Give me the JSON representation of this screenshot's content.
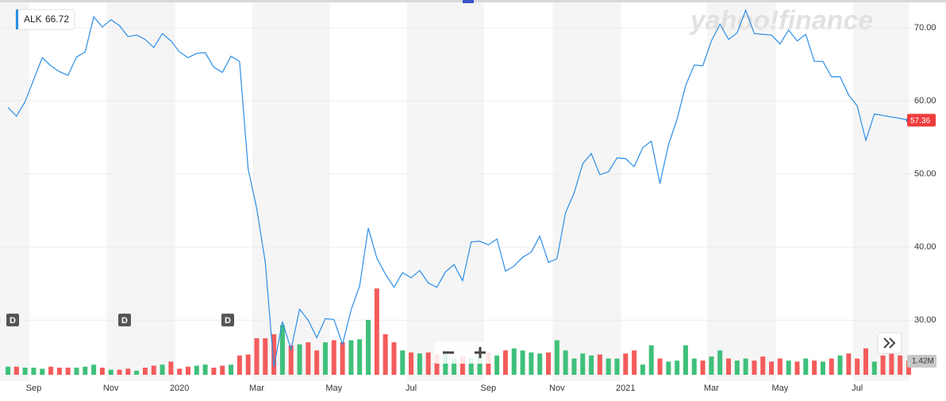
{
  "chart_data": {
    "type": "line",
    "watermark": "yahoo!finance",
    "tooltip_value": 66.72,
    "last_price": 57.36,
    "categories": [
      null,
      null,
      null,
      "Sep",
      null,
      null,
      null,
      null,
      null,
      null,
      null,
      null,
      "Nov",
      null,
      null,
      null,
      null,
      null,
      null,
      null,
      "2020",
      null,
      null,
      null,
      null,
      null,
      null,
      null,
      null,
      "Mar",
      null,
      null,
      null,
      null,
      null,
      null,
      null,
      null,
      "May",
      null,
      null,
      null,
      null,
      null,
      null,
      null,
      null,
      "Jul",
      null,
      null,
      null,
      null,
      null,
      null,
      null,
      null,
      "Sep",
      null,
      null,
      null,
      null,
      null,
      null,
      null,
      "Nov",
      null,
      null,
      null,
      null,
      null,
      null,
      null,
      "2021",
      null,
      null,
      null,
      null,
      null,
      null,
      null,
      null,
      null,
      "Mar",
      null,
      null,
      null,
      null,
      null,
      null,
      null,
      "May",
      null,
      null,
      null,
      null,
      null,
      null,
      null,
      null,
      "Jul",
      null,
      null,
      null,
      null,
      null,
      null
    ],
    "series": [
      {
        "name": "ALK",
        "color": "#2b8ee6",
        "values": [
          59.1,
          57.9,
          59.9,
          62.9,
          65.9,
          64.8,
          64.0,
          63.5,
          66.0,
          66.7,
          71.5,
          70.1,
          71.1,
          70.3,
          68.8,
          69.0,
          68.4,
          67.3,
          69.2,
          68.2,
          66.7,
          65.9,
          66.5,
          66.6,
          64.6,
          63.9,
          66.1,
          65.4,
          50.7,
          45.3,
          37.9,
          23.6,
          29.8,
          26.0,
          31.5,
          30.0,
          27.6,
          30.2,
          30.1,
          26.7,
          31.4,
          34.7,
          42.6,
          38.5,
          36.3,
          34.5,
          36.5,
          35.8,
          36.8,
          35.1,
          34.5,
          36.6,
          37.6,
          35.4,
          40.7,
          40.8,
          40.3,
          41.1,
          36.7,
          37.4,
          38.6,
          39.3,
          41.5,
          37.9,
          38.4,
          44.7,
          47.4,
          51.4,
          52.8,
          49.9,
          50.3,
          52.2,
          52.1,
          51.0,
          53.6,
          54.5,
          48.7,
          54.0,
          57.5,
          62.1,
          64.9,
          64.8,
          68.2,
          70.5,
          68.4,
          69.3,
          72.4,
          69.2,
          69.1,
          69.0,
          67.8,
          69.7,
          68.2,
          69.1,
          65.4,
          65.4,
          63.3,
          63.3,
          60.8,
          59.3,
          54.6,
          58.2,
          58.0,
          57.8,
          57.6,
          57.36
        ]
      }
    ],
    "volume": {
      "up_color": "#3fc07a",
      "down_color": "#f45b5b",
      "lim": [
        0,
        8.6
      ],
      "badge": {
        "value": 1.42,
        "label": "1.42M"
      },
      "values": [
        0.8,
        0.8,
        0.7,
        0.7,
        0.6,
        0.8,
        0.7,
        0.7,
        0.7,
        0.8,
        1.0,
        0.7,
        0.5,
        0.5,
        0.6,
        0.4,
        0.7,
        0.9,
        1.0,
        1.3,
        0.6,
        0.8,
        0.9,
        1.0,
        0.7,
        0.9,
        1.0,
        1.9,
        2.0,
        3.6,
        3.6,
        4.0,
        4.9,
        2.9,
        3.0,
        3.2,
        2.4,
        3.2,
        3.4,
        3.2,
        3.4,
        3.5,
        5.4,
        8.5,
        4.0,
        3.2,
        2.4,
        2.2,
        2.1,
        2.2,
        2.0,
        2.4,
        1.6,
        1.8,
        1.6,
        1.8,
        2.2,
        1.9,
        2.4,
        2.6,
        2.4,
        2.2,
        2.1,
        2.2,
        3.4,
        2.4,
        1.6,
        2.1,
        1.9,
        2.0,
        1.6,
        1.6,
        2.1,
        2.4,
        1.0,
        2.9,
        1.6,
        1.3,
        1.4,
        2.9,
        1.6,
        1.4,
        1.8,
        2.4,
        1.6,
        1.4,
        1.6,
        1.4,
        1.8,
        1.3,
        1.6,
        1.4,
        1.3,
        1.6,
        1.4,
        1.3,
        1.6,
        1.9,
        2.1,
        1.6,
        2.6,
        1.3,
        1.9,
        2.9,
        1.9,
        1.42
      ]
    },
    "dividends": [
      "D",
      "D",
      "D"
    ],
    "ylim": [
      22.2,
      73.8
    ],
    "yticks": [
      {
        "value": 30,
        "label": "30.00"
      },
      {
        "value": 40,
        "label": "40.00"
      },
      {
        "value": 50,
        "label": "50.00"
      },
      {
        "value": 60,
        "label": "60.00"
      },
      {
        "value": 70,
        "label": "70.00"
      }
    ],
    "grid": true
  }
}
